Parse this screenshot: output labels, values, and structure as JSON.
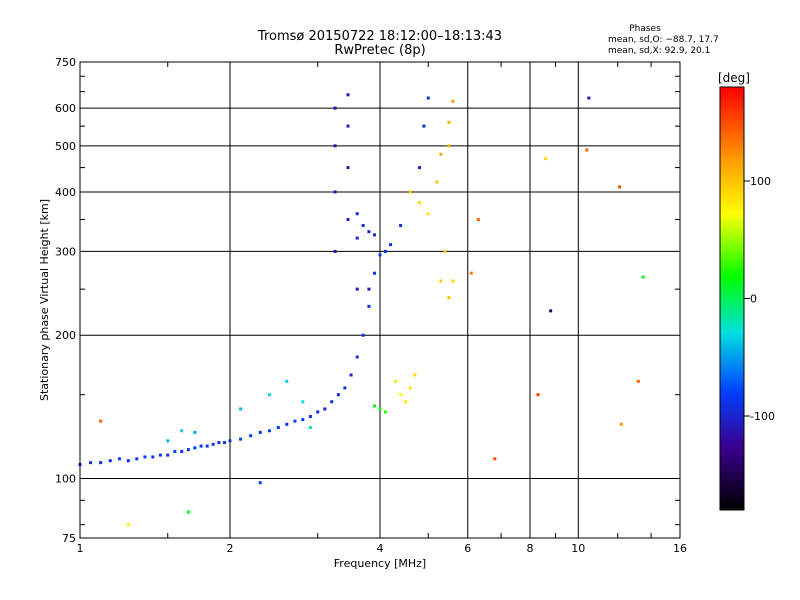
{
  "title_line1": "Tromsø 20150722 18:12:00–18:13:43",
  "title_line2": "RwPretec (8p)",
  "stats": {
    "heading": "Phases",
    "line_o": "mean, sd,O: −88.7, 17.7",
    "line_x": "mean, sd,X:  92.9, 20.1"
  },
  "chart_data": {
    "type": "scatter",
    "title": "Tromsø 20150722 18:12:00–18:13:43",
    "subtitle": "RwPretec (8p)",
    "xlabel": "Frequency [MHz]",
    "ylabel": "Stationary phase Virtual Height [km]",
    "x_scale": "log",
    "y_scale": "log",
    "xlim": [
      1,
      16
    ],
    "ylim": [
      75,
      750
    ],
    "xticks": [
      1,
      2,
      4,
      6,
      8,
      10,
      16
    ],
    "xtick_labels": [
      "1",
      "2",
      "4",
      "6",
      "8",
      "10",
      "16"
    ],
    "yticks": [
      75,
      100,
      200,
      300,
      400,
      500,
      600,
      750
    ],
    "ytick_labels": [
      "75",
      "100",
      "200",
      "300",
      "400",
      "500",
      "600",
      "750"
    ],
    "grid": true,
    "colorbar": {
      "label": "[deg]",
      "range": [
        -180,
        180
      ],
      "ticks": [
        100,
        0,
        -100
      ],
      "tick_labels": [
        "100",
        "0",
        "-100"
      ]
    },
    "series": [
      {
        "color_by_phase": true,
        "points": [
          [
            1.0,
            107,
            -95
          ],
          [
            1.05,
            108,
            -90
          ],
          [
            1.1,
            108,
            -88
          ],
          [
            1.15,
            109,
            -92
          ],
          [
            1.2,
            110,
            -85
          ],
          [
            1.25,
            109,
            -90
          ],
          [
            1.3,
            110,
            -88
          ],
          [
            1.35,
            111,
            -80
          ],
          [
            1.4,
            111,
            -90
          ],
          [
            1.45,
            112,
            -85
          ],
          [
            1.5,
            112,
            -90
          ],
          [
            1.55,
            114,
            -80
          ],
          [
            1.6,
            114,
            -85
          ],
          [
            1.65,
            115,
            -90
          ],
          [
            1.7,
            116,
            -80
          ],
          [
            1.75,
            117,
            -85
          ],
          [
            1.8,
            117,
            -88
          ],
          [
            1.85,
            118,
            -82
          ],
          [
            1.9,
            119,
            -90
          ],
          [
            1.95,
            119,
            -85
          ],
          [
            2.0,
            120,
            -88
          ],
          [
            2.1,
            121,
            -80
          ],
          [
            2.2,
            123,
            -85
          ],
          [
            2.3,
            125,
            -88
          ],
          [
            2.4,
            126,
            -80
          ],
          [
            2.5,
            128,
            -82
          ],
          [
            2.6,
            130,
            -88
          ],
          [
            2.7,
            132,
            -80
          ],
          [
            2.8,
            133,
            -85
          ],
          [
            2.9,
            135,
            -88
          ],
          [
            3.0,
            138,
            -95
          ],
          [
            3.1,
            140,
            -100
          ],
          [
            3.2,
            145,
            -90
          ],
          [
            3.3,
            150,
            -95
          ],
          [
            3.4,
            155,
            -90
          ],
          [
            3.5,
            165,
            -100
          ],
          [
            3.6,
            180,
            -95
          ],
          [
            3.7,
            200,
            -90
          ],
          [
            3.8,
            230,
            -95
          ],
          [
            3.9,
            270,
            -90
          ],
          [
            4.0,
            295,
            -85
          ],
          [
            4.1,
            300,
            -95
          ],
          [
            4.2,
            310,
            -90
          ],
          [
            4.4,
            340,
            -95
          ],
          [
            4.6,
            400,
            -100
          ],
          [
            4.8,
            450,
            -95
          ],
          [
            4.9,
            550,
            -90
          ],
          [
            5.0,
            630,
            -95
          ],
          [
            3.25,
            300,
            -110
          ],
          [
            3.25,
            400,
            -105
          ],
          [
            3.25,
            500,
            -110
          ],
          [
            3.25,
            600,
            -115
          ],
          [
            3.45,
            350,
            -105
          ],
          [
            3.45,
            450,
            -110
          ],
          [
            3.45,
            550,
            -105
          ],
          [
            3.45,
            640,
            -110
          ],
          [
            3.6,
            320,
            -100
          ],
          [
            3.6,
            360,
            -95
          ],
          [
            3.7,
            340,
            -95
          ],
          [
            3.8,
            330,
            -100
          ],
          [
            3.9,
            325,
            -100
          ],
          [
            3.8,
            250,
            -110
          ],
          [
            3.6,
            250,
            -105
          ],
          [
            2.1,
            140,
            -40
          ],
          [
            2.4,
            150,
            -30
          ],
          [
            2.6,
            160,
            -35
          ],
          [
            2.8,
            145,
            -30
          ],
          [
            2.9,
            128,
            -20
          ],
          [
            1.5,
            120,
            -40
          ],
          [
            1.6,
            126,
            -35
          ],
          [
            1.7,
            125,
            -45
          ],
          [
            4.3,
            160,
            60
          ],
          [
            4.4,
            150,
            75
          ],
          [
            4.5,
            145,
            80
          ],
          [
            4.6,
            155,
            85
          ],
          [
            4.7,
            165,
            90
          ],
          [
            4.6,
            400,
            95
          ],
          [
            4.8,
            380,
            90
          ],
          [
            5.0,
            360,
            85
          ],
          [
            5.2,
            420,
            100
          ],
          [
            5.3,
            480,
            110
          ],
          [
            5.5,
            560,
            110
          ],
          [
            5.6,
            620,
            115
          ],
          [
            5.5,
            500,
            105
          ],
          [
            5.4,
            300,
            95
          ],
          [
            5.6,
            260,
            90
          ],
          [
            5.5,
            240,
            100
          ],
          [
            5.3,
            260,
            95
          ],
          [
            4.0,
            140,
            20
          ],
          [
            4.1,
            138,
            25
          ],
          [
            3.9,
            142,
            15
          ],
          [
            1.1,
            132,
            140
          ],
          [
            1.25,
            80,
            80
          ],
          [
            1.65,
            85,
            10
          ],
          [
            2.3,
            98,
            -80
          ],
          [
            6.3,
            350,
            140
          ],
          [
            6.1,
            270,
            130
          ],
          [
            6.8,
            110,
            150
          ],
          [
            8.6,
            470,
            90
          ],
          [
            8.8,
            225,
            -140
          ],
          [
            10.5,
            630,
            -110
          ],
          [
            10.4,
            490,
            140
          ],
          [
            12.1,
            410,
            150
          ],
          [
            13.2,
            160,
            140
          ],
          [
            12.2,
            130,
            120
          ],
          [
            13.5,
            265,
            10
          ],
          [
            8.3,
            150,
            160
          ]
        ]
      }
    ]
  }
}
